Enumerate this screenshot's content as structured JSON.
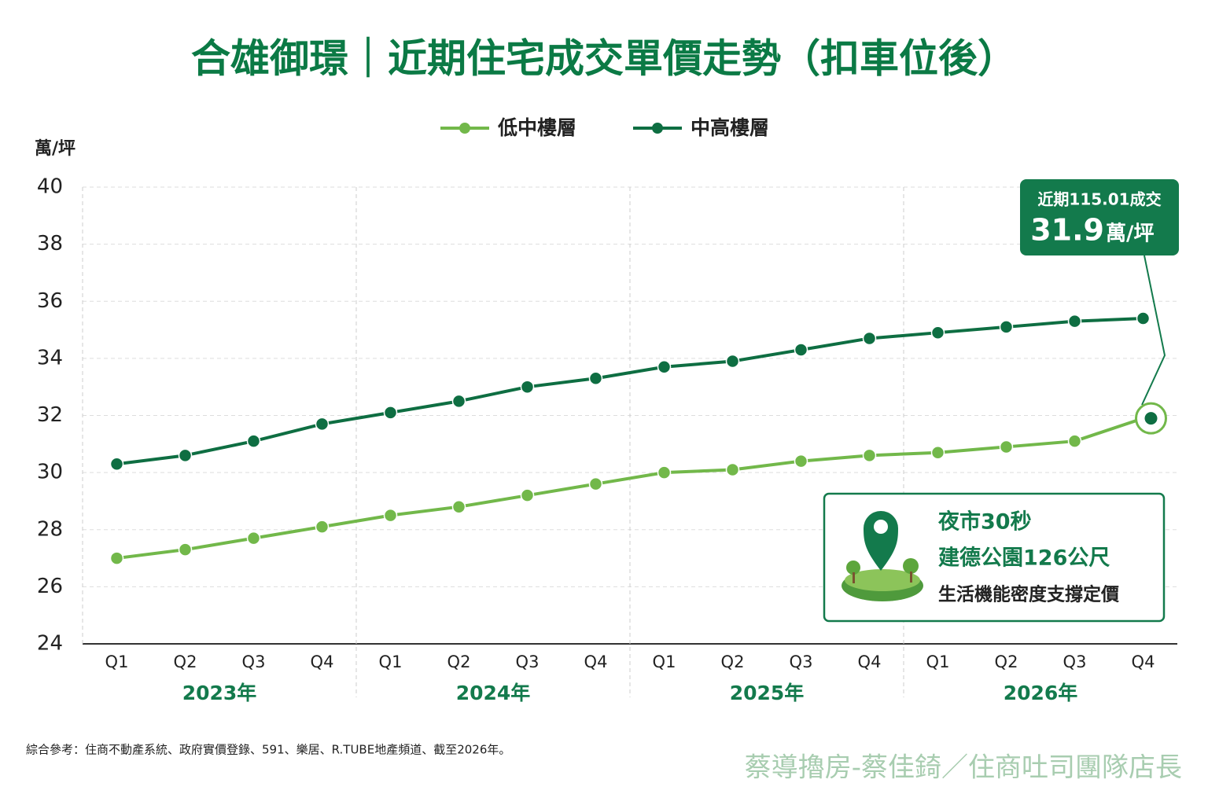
{
  "chart_data": {
    "type": "line",
    "title": "合雄御璟｜近期住宅成交單價走勢（扣車位後）",
    "y_label": "萬/坪",
    "categories": [
      "Q1",
      "Q2",
      "Q3",
      "Q4",
      "Q1",
      "Q2",
      "Q3",
      "Q4",
      "Q1",
      "Q2",
      "Q3",
      "Q4",
      "Q1",
      "Q2",
      "Q3",
      "Q4"
    ],
    "years": [
      "2023年",
      "2024年",
      "2025年",
      "2026年"
    ],
    "series": [
      {
        "name": "低中樓層",
        "color": "#72b84a",
        "values": [
          27.0,
          27.3,
          27.7,
          28.1,
          28.5,
          28.8,
          29.2,
          29.6,
          30.0,
          30.1,
          30.4,
          30.6,
          30.7,
          30.9,
          31.1,
          31.9
        ]
      },
      {
        "name": "中高樓層",
        "color": "#0e6e42",
        "values": [
          30.3,
          30.6,
          31.1,
          31.7,
          32.1,
          32.5,
          33.0,
          33.3,
          33.7,
          33.9,
          34.3,
          34.7,
          34.9,
          35.1,
          35.3,
          35.4
        ]
      }
    ],
    "ylim": [
      24,
      40
    ],
    "yticks": [
      24,
      26,
      28,
      30,
      32,
      34,
      36,
      38,
      40
    ],
    "grid": true,
    "legend": "top",
    "callout": {
      "title": "近期115.01成交",
      "value": 31.9,
      "unit": "萬/坪"
    },
    "info_box": [
      "夜市30秒",
      "建德公園126公尺",
      "生活機能密度支撐定價"
    ],
    "source": "綜合參考：住商不動產系統、政府實價登錄、591、樂居、R.TUBE地產頻道、截至2026年。",
    "watermark": "蔡導擼房-蔡佳錡／住商吐司團隊店長"
  }
}
